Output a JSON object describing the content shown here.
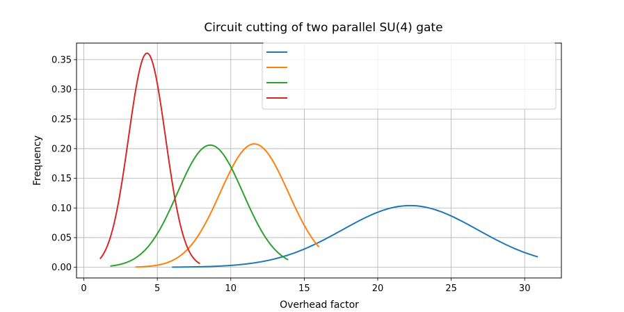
{
  "chart_data": {
    "type": "line",
    "title": "Circuit cutting of two parallel SU(4) gate",
    "xlabel": "Overhead factor",
    "ylabel": "Frequency",
    "xlim": [
      -0.5,
      32.5
    ],
    "ylim": [
      -0.018,
      0.378
    ],
    "xticks": [
      0,
      5,
      10,
      15,
      20,
      25,
      30
    ],
    "yticks": [
      0.0,
      0.05,
      0.1,
      0.15,
      0.2,
      0.25,
      0.3,
      0.35
    ],
    "ytick_labels": [
      "0.00",
      "0.05",
      "0.10",
      "0.15",
      "0.20",
      "0.25",
      "0.30",
      "0.35"
    ],
    "grid": true,
    "legend": {
      "position": "top-right",
      "entries_with_visible_text": false
    },
    "series": [
      {
        "color": "#1f77b4",
        "x_range": [
          6.0,
          30.9
        ],
        "peak_x": 22.2,
        "peak_y": 0.104
      },
      {
        "color": "#ff7f0e",
        "x_range": [
          3.5,
          16.0
        ],
        "peak_x": 11.6,
        "peak_y": 0.208
      },
      {
        "color": "#2ca02c",
        "x_range": [
          1.8,
          13.9
        ],
        "peak_x": 8.6,
        "peak_y": 0.206
      },
      {
        "color": "#d62728",
        "x_range": [
          1.1,
          7.9
        ],
        "peak_x": 4.3,
        "peak_y": 0.361
      }
    ]
  }
}
